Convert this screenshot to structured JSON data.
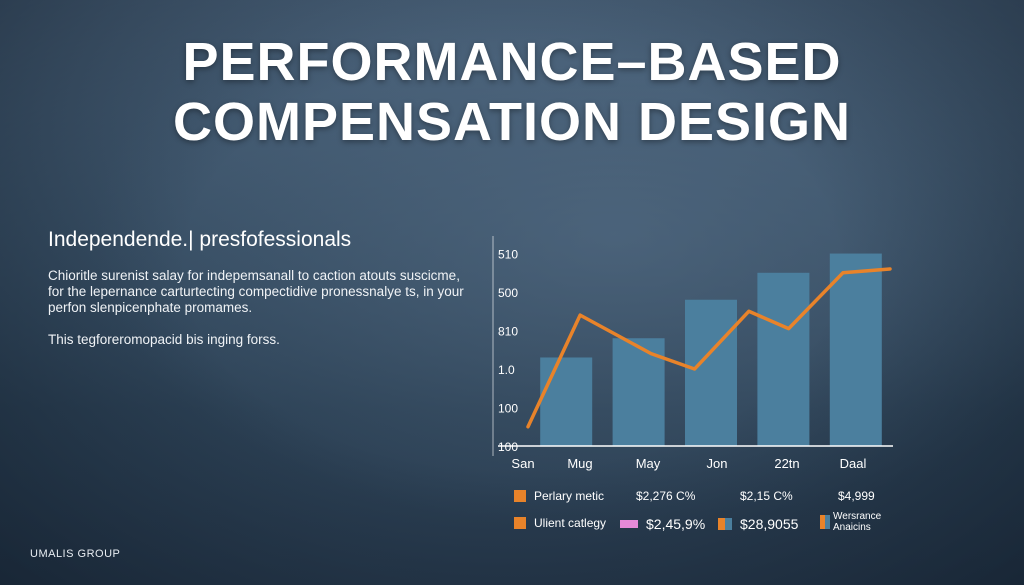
{
  "title": {
    "line1": "PERFORMANCE–BASED",
    "line2": "COMPENSATION DESIGN"
  },
  "lead": {
    "heading": "Independe­nde.| presfofessionals",
    "para1": "Chioritle surenist salay for indepemsanall to caction atouts suscicme, for the lepernance carturtecting compectidive pronessnalye ts, in your perfon slenpicenphate promames.",
    "para2": "This tegforeromopacid bis inging forss."
  },
  "brand": "UMALIS GROUP",
  "colors": {
    "bar": "#4b7f9e",
    "line": "#e8832a",
    "axis": "#ffffff"
  },
  "chart_data": {
    "type": "bar",
    "categories": [
      "Mug",
      "May",
      "Jon",
      "22tn",
      "Daal"
    ],
    "x_tick_labels": [
      "San",
      "Mug",
      "May",
      "Jon",
      "22tn",
      "Daal"
    ],
    "y_tick_labels": [
      "510",
      "500",
      "810",
      "1.0",
      "100",
      "100"
    ],
    "y_tick_values": [
      5,
      4,
      3,
      2,
      1,
      0
    ],
    "ylim": [
      0,
      5.3
    ],
    "values": [
      2.3,
      2.8,
      3.8,
      4.5,
      5.0
    ],
    "line": {
      "x": [
        "San",
        "Mug",
        "May",
        "May",
        "Jon",
        "Jon",
        "22tn",
        "Daal"
      ],
      "positions": [
        0.0,
        0.72,
        1.7,
        2.3,
        3.05,
        3.6,
        4.35,
        5.0
      ],
      "y": [
        0.5,
        3.4,
        2.4,
        2.0,
        3.5,
        3.05,
        4.5,
        4.6
      ]
    },
    "legend": [
      {
        "label": "Perlary metic",
        "swatch": "#e8832a"
      },
      {
        "label": "Ulient catlegy",
        "swatch": "#e8832a"
      }
    ],
    "legend_values": {
      "row1": [
        "$2,276 C%",
        "$2,15 C%",
        "$4,999"
      ],
      "row2": [
        "$2,45,9%",
        "$28,9055"
      ],
      "row2_swatches": [
        "#e58ad8",
        "#e8832a"
      ],
      "row2_note": "Wersrance Anaicins",
      "row2_note_swatch": "#e8832a"
    },
    "grid": false
  }
}
